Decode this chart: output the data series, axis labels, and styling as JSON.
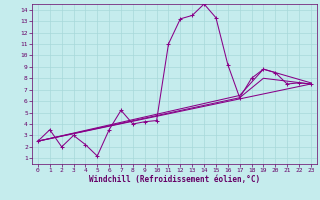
{
  "xlabel": "Windchill (Refroidissement éolien,°C)",
  "xlim": [
    -0.5,
    23.5
  ],
  "ylim": [
    0.5,
    14.5
  ],
  "xticks": [
    0,
    1,
    2,
    3,
    4,
    5,
    6,
    7,
    8,
    9,
    10,
    11,
    12,
    13,
    14,
    15,
    16,
    17,
    18,
    19,
    20,
    21,
    22,
    23
  ],
  "yticks": [
    1,
    2,
    3,
    4,
    5,
    6,
    7,
    8,
    9,
    10,
    11,
    12,
    13,
    14
  ],
  "bg_color": "#c5eced",
  "grid_color": "#a8d8da",
  "line_color": "#880088",
  "font_color": "#660066",
  "line1_x": [
    0,
    1,
    2,
    3,
    4,
    5,
    6,
    7,
    8,
    9,
    10,
    11,
    12,
    13,
    14,
    15,
    16,
    17,
    18,
    19,
    20,
    21,
    22,
    23
  ],
  "line1_y": [
    2.5,
    3.5,
    2.0,
    3.0,
    2.2,
    1.2,
    3.5,
    5.2,
    4.0,
    4.2,
    4.3,
    11.0,
    13.2,
    13.5,
    14.5,
    13.3,
    9.2,
    6.3,
    8.0,
    8.8,
    8.5,
    7.5,
    7.6,
    7.5
  ],
  "line2_x": [
    0,
    23
  ],
  "line2_y": [
    2.5,
    7.5
  ],
  "line3_x": [
    0,
    17,
    19,
    23
  ],
  "line3_y": [
    2.5,
    6.3,
    8.0,
    7.5
  ],
  "line4_x": [
    0,
    17,
    19,
    23
  ],
  "line4_y": [
    2.5,
    6.5,
    8.8,
    7.6
  ]
}
